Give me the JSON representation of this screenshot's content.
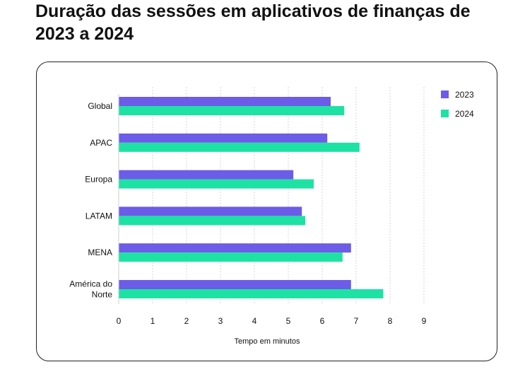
{
  "title": "Duração das sessões em aplicativos de finanças de 2023 a 2024",
  "chart_data": {
    "type": "bar",
    "orientation": "horizontal",
    "title": "Duração das sessões em aplicativos de finanças de 2023 a 2024",
    "categories": [
      [
        "Global"
      ],
      [
        "APAC"
      ],
      [
        "Europa"
      ],
      [
        "LATAM"
      ],
      [
        "MENA"
      ],
      [
        "América do",
        "Norte"
      ]
    ],
    "series": [
      {
        "name": "2023",
        "color": "#6c5ce7",
        "values": [
          6.25,
          6.15,
          5.15,
          5.4,
          6.85,
          6.85
        ]
      },
      {
        "name": "2024",
        "color": "#1de2a4",
        "values": [
          6.65,
          7.1,
          5.75,
          5.5,
          6.6,
          7.8
        ]
      }
    ],
    "xlabel": "Tempo em minutos",
    "ylabel": "",
    "xlim": [
      0,
      9
    ],
    "xticks": [
      "0",
      "1",
      "2",
      "3",
      "4",
      "5",
      "6",
      "7",
      "8",
      "9"
    ],
    "grid": "vertical dotted",
    "legend_position": "top-right"
  }
}
